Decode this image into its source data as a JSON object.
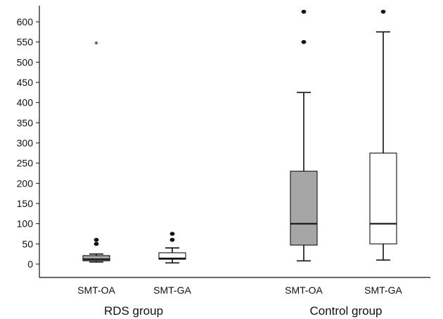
{
  "chart_data": {
    "type": "boxplot",
    "title": "",
    "xlabel": "",
    "ylabel": "",
    "ylim": [
      -30,
      630
    ],
    "yticks": [
      0,
      50,
      100,
      150,
      200,
      250,
      300,
      350,
      400,
      450,
      500,
      550,
      600
    ],
    "groups": [
      "RDS group",
      "Control group"
    ],
    "boxes": [
      {
        "group": "RDS group",
        "category": "SMT-OA",
        "fill": "#a6a6a6",
        "whisker_low": 5,
        "q1": 8,
        "median": 12,
        "q3": 21,
        "whisker_high": 25,
        "outliers": [
          50,
          60
        ],
        "extremes": [
          548
        ]
      },
      {
        "group": "RDS group",
        "category": "SMT-GA",
        "fill": "#ffffff",
        "whisker_low": 3,
        "q1": 12,
        "median": 14,
        "q3": 28,
        "whisker_high": 40,
        "outliers": [
          60,
          75
        ],
        "extremes": []
      },
      {
        "group": "Control group",
        "category": "SMT-OA",
        "fill": "#a6a6a6",
        "whisker_low": 8,
        "q1": 47,
        "median": 100,
        "q3": 230,
        "whisker_high": 425,
        "outliers": [
          550,
          625
        ],
        "extremes": []
      },
      {
        "group": "Control group",
        "category": "SMT-GA",
        "fill": "#ffffff",
        "whisker_low": 10,
        "q1": 50,
        "median": 100,
        "q3": 275,
        "whisker_high": 575,
        "outliers": [
          625
        ],
        "extremes": []
      }
    ],
    "grid": false,
    "colors": {
      "axis": "#111111",
      "box_stroke": "#111111",
      "gray_fill": "#a6a6a6",
      "white_fill": "#ffffff"
    }
  }
}
